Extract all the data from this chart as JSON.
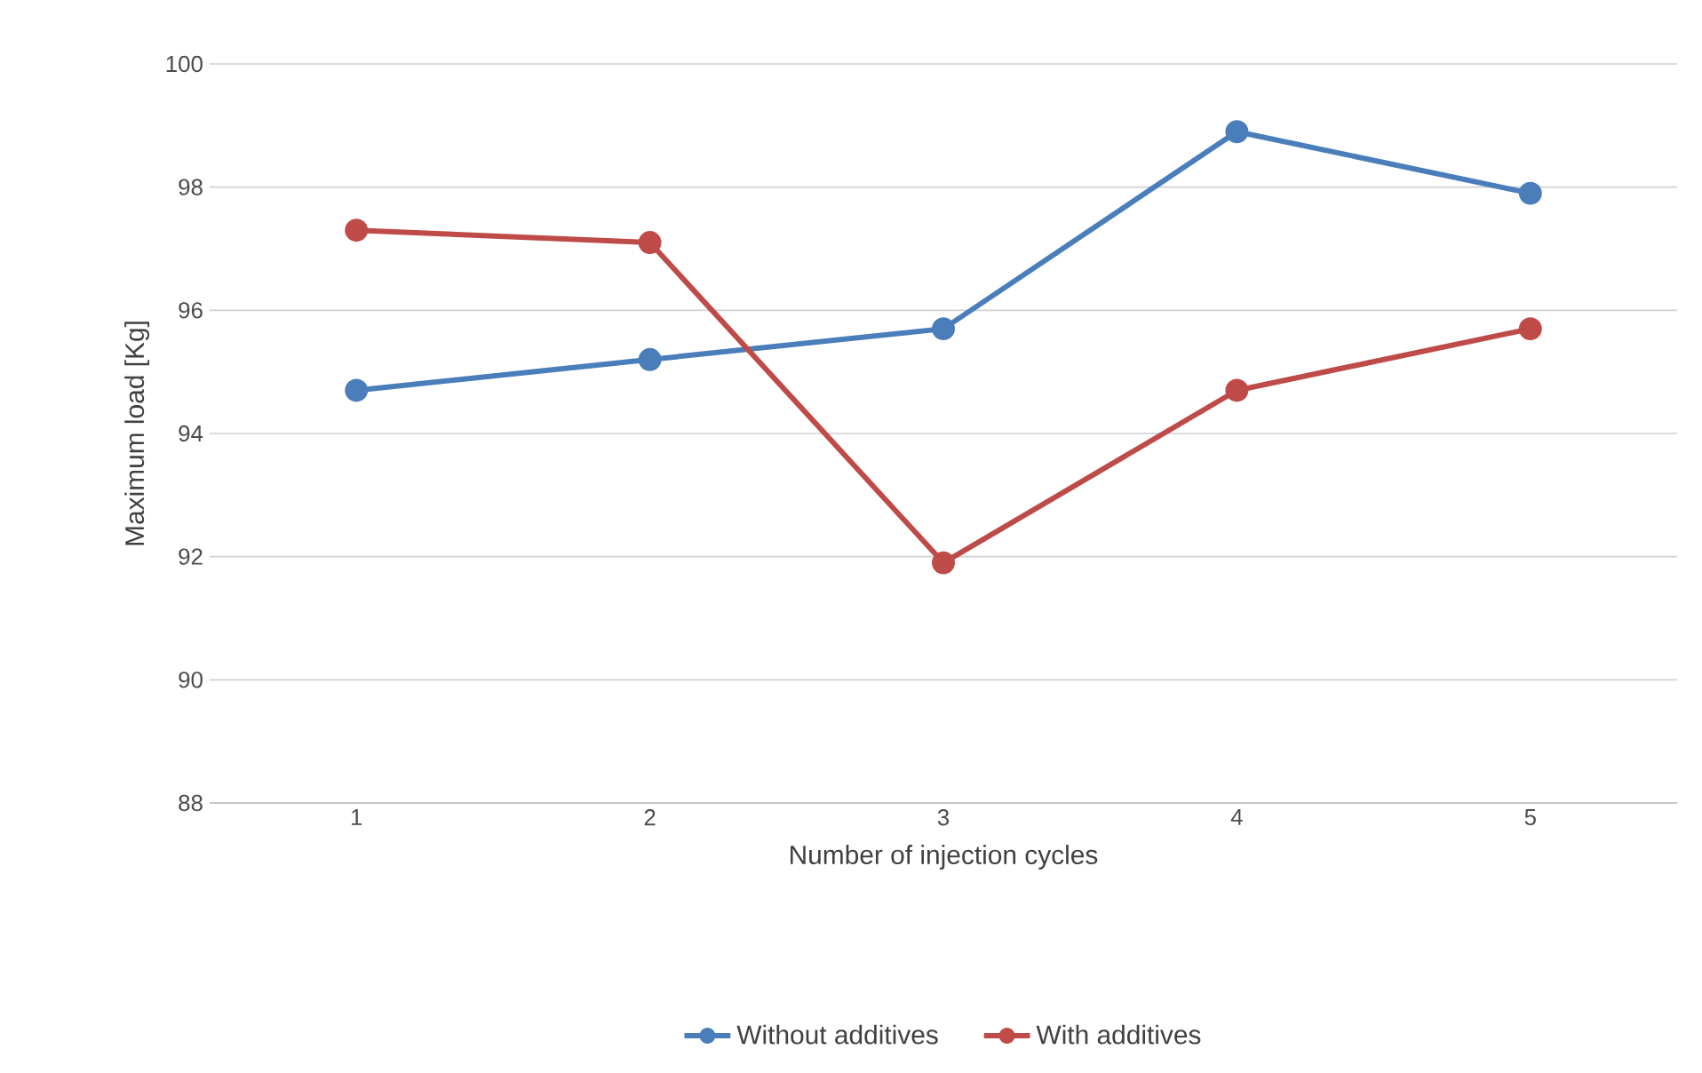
{
  "chart_data": {
    "type": "line",
    "xlabel": "Number of injection cycles",
    "ylabel": "Maximum load [Kg]",
    "categories": [
      "1",
      "2",
      "3",
      "4",
      "5"
    ],
    "series": [
      {
        "name": "Without additives",
        "color": "#4a7ebb",
        "values": [
          94.7,
          95.2,
          95.7,
          98.9,
          97.9
        ]
      },
      {
        "name": "With additives",
        "color": "#be4b48",
        "values": [
          97.3,
          97.1,
          91.9,
          94.7,
          95.7
        ]
      }
    ],
    "ylim": [
      88,
      100
    ],
    "yticks": [
      88,
      90,
      92,
      94,
      96,
      98,
      100
    ],
    "grid": "y",
    "legend": "bottom",
    "marker": "circle",
    "line_style": "solid"
  }
}
